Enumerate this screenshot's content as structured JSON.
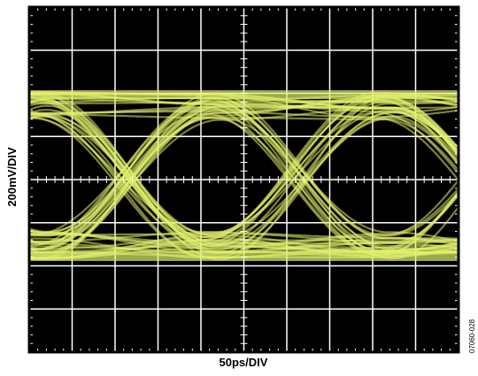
{
  "y_label": "200mV/DIV",
  "x_label": "50ps/DIV",
  "figure_id": "07060-028"
}
